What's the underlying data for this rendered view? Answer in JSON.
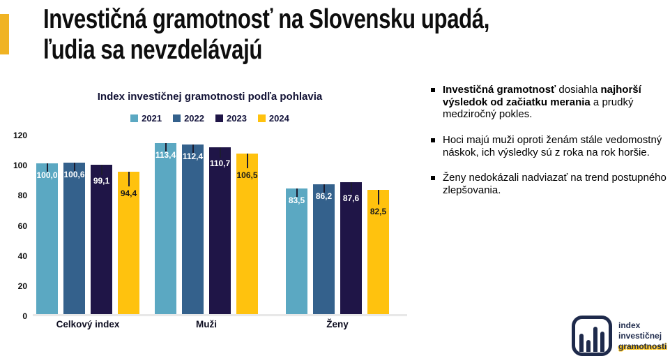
{
  "header": {
    "title_line1": "Investičná gramotnosť na Slovensku upadá,",
    "title_line2": "ľudia sa nevzdelávajú",
    "accent_color": "#F0B323"
  },
  "chart_data": {
    "type": "bar",
    "title": "Index investičnej gramotnosti podľa pohlavia",
    "categories": [
      "Celkový index",
      "Muži",
      "Ženy"
    ],
    "series": [
      {
        "name": "2021",
        "color": "#5BA8C2",
        "label_color": "#FFFFFF",
        "values": [
          100.0,
          113.4,
          83.5
        ],
        "values_display": [
          "100,0",
          "113,4",
          "83,5"
        ]
      },
      {
        "name": "2022",
        "color": "#34618C",
        "label_color": "#FFFFFF",
        "values": [
          100.6,
          112.4,
          86.2
        ],
        "values_display": [
          "100,6",
          "112,4",
          "86,2"
        ]
      },
      {
        "name": "2023",
        "color": "#1F1547",
        "label_color": "#FFFFFF",
        "values": [
          99.1,
          110.7,
          87.6
        ],
        "values_display": [
          "99,1",
          "110,7",
          "87,6"
        ]
      },
      {
        "name": "2024",
        "color": "#FFC20E",
        "label_color": "#1A1A1A",
        "values": [
          94.4,
          106.5,
          82.5
        ],
        "values_display": [
          "94,4",
          "106,5",
          "82,5"
        ]
      }
    ],
    "y_ticks": [
      0,
      20,
      40,
      60,
      80,
      100,
      120
    ],
    "ylim": [
      0,
      120
    ],
    "xlabel": "",
    "ylabel": "",
    "grid": false,
    "legend_position": "top",
    "error_bars": true
  },
  "bullets": [
    {
      "segments": [
        {
          "text": "Investičná gramotnosť",
          "bold": true
        },
        {
          "text": " dosiahla ",
          "bold": false
        },
        {
          "text": "najhorší výsledok od začiatku merania",
          "bold": true
        },
        {
          "text": " a prudký medziročný pokles.",
          "bold": false
        }
      ]
    },
    {
      "segments": [
        {
          "text": "Hoci majú muži oproti ženám stále vedomostný náskok, ich výsledky sú z roka na rok horšie.",
          "bold": false
        }
      ]
    },
    {
      "segments": [
        {
          "text": "Ženy nedokázali nadviazať na trend postupného zlepšovania.",
          "bold": false
        }
      ]
    }
  ],
  "logo": {
    "line1": "index",
    "line2": "investičnej",
    "line3": "gramotnosti",
    "color": "#1E2A4B",
    "highlight_color": "#FFC20E"
  }
}
